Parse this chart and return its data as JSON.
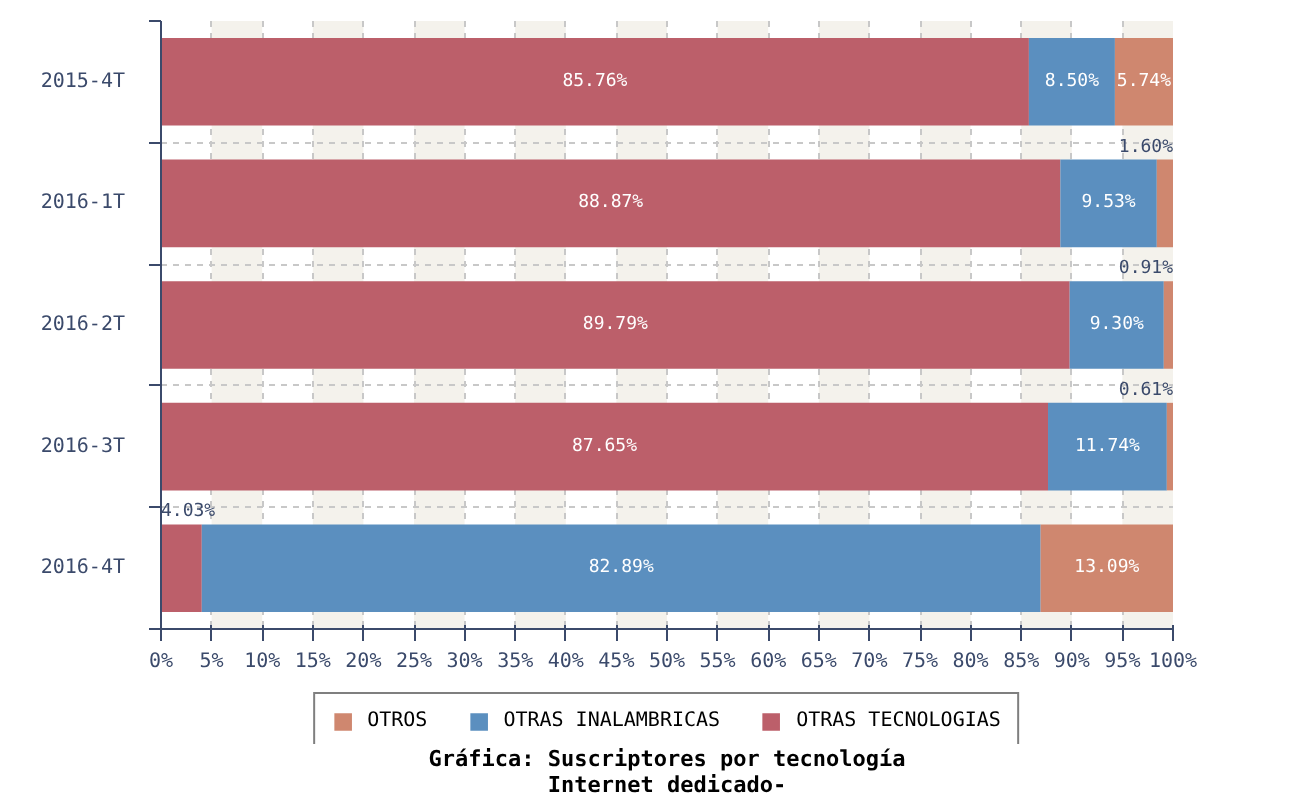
{
  "chart_data": {
    "type": "bar",
    "orientation": "horizontal",
    "stacked": true,
    "title": "Gráfica: Suscriptores por tecnología",
    "subtitle": "Internet dedicado-",
    "categories": [
      "2015-4T",
      "2016-1T",
      "2016-2T",
      "2016-3T",
      "2016-4T"
    ],
    "series": [
      {
        "name": "OTRAS TECNOLOGIAS",
        "color": "#bc5f6a",
        "values": [
          85.76,
          88.87,
          89.79,
          87.65,
          4.03
        ],
        "value_labels": [
          "85.76%",
          "88.87%",
          "89.79%",
          "87.65%",
          "4.03%"
        ]
      },
      {
        "name": "OTRAS INALAMBRICAS",
        "color": "#5b8fbf",
        "values": [
          8.5,
          9.53,
          9.3,
          11.74,
          82.89
        ],
        "value_labels": [
          "8.50%",
          "9.53%",
          "9.30%",
          "11.74%",
          "82.89%"
        ]
      },
      {
        "name": "OTROS",
        "color": "#cf876f",
        "values": [
          5.74,
          1.6,
          0.91,
          0.61,
          13.09
        ],
        "value_labels": [
          "5.74%",
          "1.60%",
          "0.91%",
          "0.61%",
          "13.09%"
        ]
      }
    ],
    "xlim": [
      0,
      100
    ],
    "xticks": [
      {
        "value": 0,
        "label": "0%"
      },
      {
        "value": 5,
        "label": "5%"
      },
      {
        "value": 10,
        "label": "10%"
      },
      {
        "value": 15,
        "label": "15%"
      },
      {
        "value": 20,
        "label": "20%"
      },
      {
        "value": 25,
        "label": "25%"
      },
      {
        "value": 30,
        "label": "30%"
      },
      {
        "value": 35,
        "label": "35%"
      },
      {
        "value": 40,
        "label": "40%"
      },
      {
        "value": 45,
        "label": "45%"
      },
      {
        "value": 50,
        "label": "50%"
      },
      {
        "value": 55,
        "label": "55%"
      },
      {
        "value": 60,
        "label": "60%"
      },
      {
        "value": 65,
        "label": "65%"
      },
      {
        "value": 70,
        "label": "70%"
      },
      {
        "value": 75,
        "label": "75%"
      },
      {
        "value": 80,
        "label": "80%"
      },
      {
        "value": 85,
        "label": "85%"
      },
      {
        "value": 90,
        "label": "90%"
      },
      {
        "value": 95,
        "label": "95%"
      },
      {
        "value": 100,
        "label": "100%"
      }
    ],
    "grid": true,
    "legend": "bottom"
  }
}
